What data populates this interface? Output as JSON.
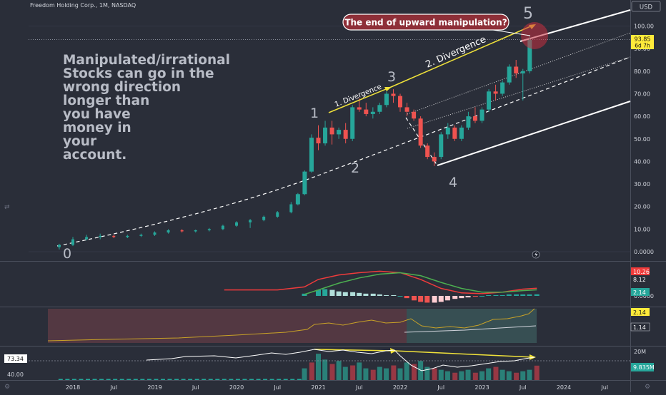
{
  "header": {
    "symbol_line": "Freedom Holding Corp., 1M, NASDAQ",
    "currency": "USD"
  },
  "price_axis": {
    "ticks": [
      "100.00",
      "90.00",
      "80.00",
      "70.00",
      "60.00",
      "50.00",
      "40.00",
      "30.00",
      "20.00",
      "10.00",
      "0.0000"
    ],
    "last_price": "93.85",
    "countdown": "6d 7h"
  },
  "time_axis": {
    "labels": [
      "2018",
      "Jul",
      "2019",
      "Jul",
      "2020",
      "Jul",
      "2021",
      "Jul",
      "2022",
      "Jul",
      "2023",
      "Jul",
      "2024",
      "Jul"
    ]
  },
  "annotations": {
    "text_lines": [
      "Manipulated/irrational",
      "Stocks can go in the",
      "wrong direction",
      "longer  than",
      "you have",
      "money in",
      "your",
      "account."
    ],
    "callout": "The end of upward manipulation?",
    "wave_labels": [
      "0",
      "1",
      "2",
      "3",
      "4",
      "5"
    ],
    "divergence_1": "1. Divergence",
    "divergence_2": "2. Divergence"
  },
  "macd_panel": {
    "values": [
      "10.26",
      "8.12",
      "2.14"
    ],
    "zero_tick": "0.0000"
  },
  "indicator2_panel": {
    "values": [
      "2.14",
      "1.14"
    ]
  },
  "volume_panel": {
    "left_axis": [
      "73.34",
      "40.00"
    ],
    "right_ticks": [
      "20M"
    ],
    "volume_value": "9.835M"
  },
  "colors": {
    "background": "#2a2e39",
    "up": "#26a69a",
    "down": "#ef5350",
    "callout_bg": "#8e2f38",
    "arrow": "#f0e23a",
    "channel": "#ffffff",
    "last_price_tag": "#ffeb3b",
    "macd_line": "#ef3b3b",
    "signal_line": "#4caf50"
  },
  "chart_data": {
    "type": "candlestick",
    "x_unit": "month",
    "y_range": [
      0,
      100
    ],
    "candles": [
      {
        "date": "2017-11",
        "o": 2.0,
        "h": 3.5,
        "l": 1.0,
        "c": 3.0
      },
      {
        "date": "2018-01",
        "o": 3.0,
        "h": 6.5,
        "l": 2.5,
        "c": 5.5
      },
      {
        "date": "2018-03",
        "o": 5.5,
        "h": 7.5,
        "l": 5.0,
        "c": 6.5
      },
      {
        "date": "2018-05",
        "o": 6.5,
        "h": 8.0,
        "l": 5.5,
        "c": 7.0
      },
      {
        "date": "2018-07",
        "o": 7.0,
        "h": 7.5,
        "l": 6.0,
        "c": 6.5
      },
      {
        "date": "2018-09",
        "o": 6.5,
        "h": 7.5,
        "l": 6.0,
        "c": 7.0
      },
      {
        "date": "2018-11",
        "o": 7.0,
        "h": 8.0,
        "l": 6.5,
        "c": 7.5
      },
      {
        "date": "2019-01",
        "o": 7.5,
        "h": 9.0,
        "l": 7.0,
        "c": 8.5
      },
      {
        "date": "2019-03",
        "o": 8.5,
        "h": 10.0,
        "l": 8.0,
        "c": 9.5
      },
      {
        "date": "2019-05",
        "o": 9.5,
        "h": 10.0,
        "l": 8.5,
        "c": 9.0
      },
      {
        "date": "2019-07",
        "o": 9.0,
        "h": 9.8,
        "l": 8.5,
        "c": 9.5
      },
      {
        "date": "2019-09",
        "o": 9.5,
        "h": 10.5,
        "l": 9.0,
        "c": 10.0
      },
      {
        "date": "2019-11",
        "o": 10.0,
        "h": 12.0,
        "l": 9.5,
        "c": 11.5
      },
      {
        "date": "2020-01",
        "o": 11.5,
        "h": 13.5,
        "l": 11.0,
        "c": 13.0
      },
      {
        "date": "2020-03",
        "o": 13.0,
        "h": 14.5,
        "l": 10.5,
        "c": 14.0
      },
      {
        "date": "2020-05",
        "o": 14.0,
        "h": 16.0,
        "l": 13.5,
        "c": 15.5
      },
      {
        "date": "2020-07",
        "o": 15.5,
        "h": 18.0,
        "l": 15.0,
        "c": 17.5
      },
      {
        "date": "2020-09",
        "o": 17.5,
        "h": 22.0,
        "l": 17.0,
        "c": 21.0
      },
      {
        "date": "2020-10",
        "o": 21.0,
        "h": 26.0,
        "l": 20.5,
        "c": 25.5
      },
      {
        "date": "2020-11",
        "o": 25.5,
        "h": 36.0,
        "l": 25.0,
        "c": 35.5
      },
      {
        "date": "2020-12",
        "o": 35.5,
        "h": 52.0,
        "l": 35.0,
        "c": 50.5
      },
      {
        "date": "2021-01",
        "o": 50.5,
        "h": 56.0,
        "l": 45.0,
        "c": 48.0
      },
      {
        "date": "2021-02",
        "o": 48.0,
        "h": 58.0,
        "l": 47.0,
        "c": 55.0
      },
      {
        "date": "2021-03",
        "o": 55.0,
        "h": 58.0,
        "l": 47.5,
        "c": 52.0
      },
      {
        "date": "2021-04",
        "o": 52.0,
        "h": 55.0,
        "l": 50.0,
        "c": 54.0
      },
      {
        "date": "2021-05",
        "o": 54.0,
        "h": 57.0,
        "l": 48.0,
        "c": 50.0
      },
      {
        "date": "2021-06",
        "o": 50.0,
        "h": 65.0,
        "l": 49.0,
        "c": 64.0
      },
      {
        "date": "2021-07",
        "o": 64.0,
        "h": 68.0,
        "l": 62.0,
        "c": 63.0
      },
      {
        "date": "2021-08",
        "o": 63.0,
        "h": 66.0,
        "l": 60.0,
        "c": 61.0
      },
      {
        "date": "2021-09",
        "o": 61.0,
        "h": 64.0,
        "l": 59.0,
        "c": 62.0
      },
      {
        "date": "2021-10",
        "o": 62.0,
        "h": 66.0,
        "l": 61.0,
        "c": 65.0
      },
      {
        "date": "2021-11",
        "o": 65.0,
        "h": 71.0,
        "l": 64.0,
        "c": 70.0
      },
      {
        "date": "2021-12",
        "o": 70.0,
        "h": 72.0,
        "l": 66.0,
        "c": 69.0
      },
      {
        "date": "2022-01",
        "o": 69.0,
        "h": 70.0,
        "l": 62.0,
        "c": 64.0
      },
      {
        "date": "2022-02",
        "o": 64.0,
        "h": 66.0,
        "l": 60.0,
        "c": 62.0
      },
      {
        "date": "2022-03",
        "o": 62.0,
        "h": 63.0,
        "l": 58.0,
        "c": 59.0
      },
      {
        "date": "2022-04",
        "o": 59.0,
        "h": 60.0,
        "l": 46.0,
        "c": 47.0
      },
      {
        "date": "2022-05",
        "o": 47.0,
        "h": 48.0,
        "l": 41.0,
        "c": 42.0
      },
      {
        "date": "2022-06",
        "o": 42.0,
        "h": 44.0,
        "l": 38.0,
        "c": 40.0
      },
      {
        "date": "2022-07",
        "o": 42.0,
        "h": 53.0,
        "l": 41.0,
        "c": 52.0
      },
      {
        "date": "2022-08",
        "o": 52.0,
        "h": 57.0,
        "l": 50.0,
        "c": 55.0
      },
      {
        "date": "2022-09",
        "o": 55.0,
        "h": 56.0,
        "l": 49.0,
        "c": 50.0
      },
      {
        "date": "2022-10",
        "o": 50.0,
        "h": 56.0,
        "l": 49.0,
        "c": 55.0
      },
      {
        "date": "2022-11",
        "o": 55.0,
        "h": 62.0,
        "l": 54.0,
        "c": 60.0
      },
      {
        "date": "2022-12",
        "o": 60.0,
        "h": 64.0,
        "l": 57.0,
        "c": 58.0
      },
      {
        "date": "2023-01",
        "o": 58.0,
        "h": 64.0,
        "l": 57.0,
        "c": 63.0
      },
      {
        "date": "2023-02",
        "o": 63.0,
        "h": 72.0,
        "l": 62.0,
        "c": 71.0
      },
      {
        "date": "2023-03",
        "o": 71.0,
        "h": 74.0,
        "l": 67.0,
        "c": 70.0
      },
      {
        "date": "2023-04",
        "o": 70.0,
        "h": 76.0,
        "l": 69.0,
        "c": 75.0
      },
      {
        "date": "2023-05",
        "o": 75.0,
        "h": 83.0,
        "l": 74.0,
        "c": 82.0
      },
      {
        "date": "2023-06",
        "o": 82.0,
        "h": 85.0,
        "l": 77.0,
        "c": 79.0
      },
      {
        "date": "2023-07",
        "o": 79.0,
        "h": 81.0,
        "l": 67.0,
        "c": 80.0
      },
      {
        "date": "2023-08",
        "o": 80.0,
        "h": 96.0,
        "l": 79.0,
        "c": 93.85
      }
    ],
    "macd": {
      "macd_line": [
        [
          2020.0,
          4
        ],
        [
          2020.5,
          6
        ],
        [
          2020.83,
          12
        ],
        [
          2021.0,
          22
        ],
        [
          2021.25,
          28
        ],
        [
          2021.5,
          31
        ],
        [
          2021.75,
          33
        ],
        [
          2022.0,
          31
        ],
        [
          2022.25,
          22
        ],
        [
          2022.5,
          10
        ],
        [
          2022.75,
          4
        ],
        [
          2023.0,
          3
        ],
        [
          2023.25,
          5
        ],
        [
          2023.5,
          9
        ],
        [
          2023.67,
          10.26
        ]
      ],
      "signal_line": [
        [
          2020.83,
          2
        ],
        [
          2021.0,
          8
        ],
        [
          2021.25,
          17
        ],
        [
          2021.5,
          24
        ],
        [
          2021.75,
          29
        ],
        [
          2022.0,
          31
        ],
        [
          2022.25,
          27
        ],
        [
          2022.5,
          18
        ],
        [
          2022.75,
          10
        ],
        [
          2023.0,
          5
        ],
        [
          2023.25,
          5
        ],
        [
          2023.5,
          7
        ],
        [
          2023.67,
          8.12
        ]
      ],
      "histogram": [
        [
          2020.83,
          3
        ],
        [
          2021.0,
          8
        ],
        [
          2021.08,
          9
        ],
        [
          2021.17,
          8
        ],
        [
          2021.25,
          6
        ],
        [
          2021.33,
          5
        ],
        [
          2021.42,
          5
        ],
        [
          2021.5,
          4
        ],
        [
          2021.58,
          3
        ],
        [
          2021.67,
          3
        ],
        [
          2021.75,
          2
        ],
        [
          2021.83,
          1
        ],
        [
          2021.92,
          1
        ],
        [
          2022.0,
          0
        ],
        [
          2022.08,
          -3
        ],
        [
          2022.17,
          -6
        ],
        [
          2022.25,
          -8
        ],
        [
          2022.33,
          -9
        ],
        [
          2022.42,
          -9
        ],
        [
          2022.5,
          -8
        ],
        [
          2022.58,
          -6
        ],
        [
          2022.67,
          -4
        ],
        [
          2022.75,
          -3
        ],
        [
          2022.83,
          -2
        ],
        [
          2022.92,
          -1
        ],
        [
          2023.0,
          0
        ],
        [
          2023.08,
          1
        ],
        [
          2023.17,
          1
        ],
        [
          2023.25,
          1
        ],
        [
          2023.33,
          2
        ],
        [
          2023.42,
          2
        ],
        [
          2023.5,
          2
        ],
        [
          2023.58,
          2
        ],
        [
          2023.67,
          2.14
        ]
      ]
    },
    "volume_millions": [
      [
        2020.83,
        8
      ],
      [
        2020.92,
        12
      ],
      [
        2021.0,
        18
      ],
      [
        2021.08,
        14
      ],
      [
        2021.17,
        11
      ],
      [
        2021.25,
        13
      ],
      [
        2021.33,
        9
      ],
      [
        2021.42,
        10
      ],
      [
        2021.5,
        12
      ],
      [
        2021.58,
        8
      ],
      [
        2021.67,
        7
      ],
      [
        2021.75,
        9
      ],
      [
        2021.83,
        8
      ],
      [
        2021.92,
        10
      ],
      [
        2022.0,
        8
      ],
      [
        2022.08,
        12
      ],
      [
        2022.17,
        11
      ],
      [
        2022.25,
        13
      ],
      [
        2022.33,
        9
      ],
      [
        2022.42,
        8
      ],
      [
        2022.5,
        7
      ],
      [
        2022.58,
        6
      ],
      [
        2022.67,
        5
      ],
      [
        2022.75,
        6
      ],
      [
        2022.83,
        7
      ],
      [
        2022.92,
        5
      ],
      [
        2023.0,
        6
      ],
      [
        2023.08,
        8
      ],
      [
        2023.17,
        9
      ],
      [
        2023.25,
        7
      ],
      [
        2023.33,
        6
      ],
      [
        2023.42,
        5
      ],
      [
        2023.5,
        6
      ],
      [
        2023.58,
        7
      ],
      [
        2023.67,
        9.835
      ]
    ]
  }
}
